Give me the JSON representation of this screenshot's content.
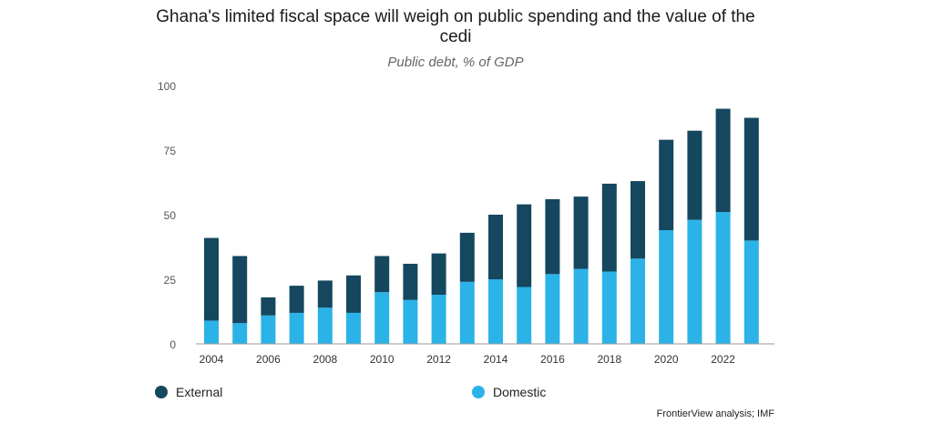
{
  "chart_data": {
    "type": "bar",
    "stacked": true,
    "title": "Ghana's limited fiscal space will weigh on public spending and the value of the cedi",
    "subtitle": "Public debt, % of GDP",
    "xlabel": "",
    "ylabel": "",
    "ylim": [
      0,
      100
    ],
    "yticks": [
      0,
      25,
      50,
      75,
      100
    ],
    "categories": [
      "2004",
      "2005",
      "2006",
      "2007",
      "2008",
      "2009",
      "2010",
      "2011",
      "2012",
      "2013",
      "2014",
      "2015",
      "2016",
      "2017",
      "2018",
      "2019",
      "2020",
      "2021",
      "2022",
      "2023"
    ],
    "xtick_labels": [
      "2004",
      "",
      "2006",
      "",
      "2008",
      "",
      "2010",
      "",
      "2012",
      "",
      "2014",
      "",
      "2016",
      "",
      "2018",
      "",
      "2020",
      "",
      "2022",
      ""
    ],
    "series": [
      {
        "name": "Domestic",
        "color": "#2bb3e8",
        "values": [
          9,
          8,
          11,
          12,
          14,
          12,
          20,
          17,
          19,
          24,
          25,
          22,
          27,
          29,
          28,
          33,
          44,
          48,
          51,
          40
        ]
      },
      {
        "name": "External",
        "color": "#15475f",
        "values": [
          32,
          26,
          7,
          10.5,
          10.5,
          14.5,
          14,
          14,
          16,
          19,
          25,
          32,
          29,
          28,
          34,
          30,
          35,
          34.5,
          40,
          47.5
        ]
      }
    ],
    "legend": {
      "position": "bottom",
      "items": [
        {
          "label": "External",
          "color": "#15475f"
        },
        {
          "label": "Domestic",
          "color": "#2bb3e8"
        }
      ]
    },
    "grid": false
  },
  "source": "FrontierView analysis; IMF"
}
